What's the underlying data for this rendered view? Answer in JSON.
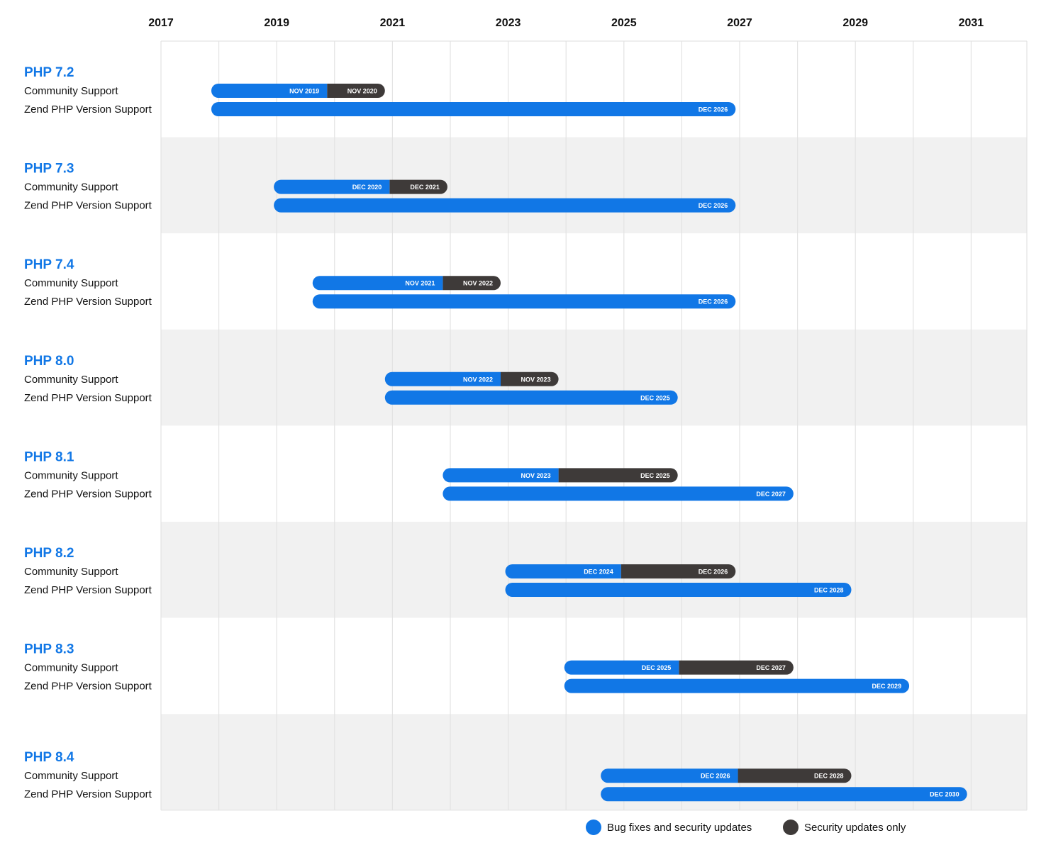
{
  "chart_data": {
    "type": "timeline",
    "years": [
      "2017",
      "2019",
      "2021",
      "2023",
      "2025",
      "2027",
      "2029",
      "2031"
    ],
    "row_labels": {
      "community": "Community Support",
      "zend": "Zend PHP Version Support"
    },
    "versions": [
      {
        "name": "PHP 7.2",
        "community": {
          "start": 2017.87,
          "full_end": 2019.87,
          "full_label": "NOV 2019",
          "security_end": 2020.87,
          "security_label": "NOV 2020"
        },
        "zend": {
          "start": 2017.87,
          "end": 2026.93,
          "label": "DEC 2026"
        }
      },
      {
        "name": "PHP 7.3",
        "community": {
          "start": 2018.95,
          "full_end": 2020.95,
          "full_label": "DEC 2020",
          "security_end": 2021.95,
          "security_label": "DEC 2021"
        },
        "zend": {
          "start": 2018.95,
          "end": 2026.93,
          "label": "DEC 2026"
        }
      },
      {
        "name": "PHP 7.4",
        "community": {
          "start": 2019.62,
          "full_end": 2021.87,
          "full_label": "NOV 2021",
          "security_end": 2022.87,
          "security_label": "NOV 2022"
        },
        "zend": {
          "start": 2019.62,
          "end": 2026.93,
          "label": "DEC 2026"
        }
      },
      {
        "name": "PHP 8.0",
        "community": {
          "start": 2020.87,
          "full_end": 2022.87,
          "full_label": "NOV 2022",
          "security_end": 2023.87,
          "security_label": "NOV 2023"
        },
        "zend": {
          "start": 2020.87,
          "end": 2025.93,
          "label": "DEC 2025"
        }
      },
      {
        "name": "PHP 8.1",
        "community": {
          "start": 2021.87,
          "full_end": 2023.87,
          "full_label": "NOV 2023",
          "security_end": 2025.93,
          "security_label": "DEC 2025"
        },
        "zend": {
          "start": 2021.87,
          "end": 2027.93,
          "label": "DEC 2027"
        }
      },
      {
        "name": "PHP 8.2",
        "community": {
          "start": 2022.95,
          "full_end": 2024.95,
          "full_label": "DEC 2024",
          "security_end": 2026.93,
          "security_label": "DEC 2026"
        },
        "zend": {
          "start": 2022.95,
          "end": 2028.93,
          "label": "DEC 2028"
        }
      },
      {
        "name": "PHP 8.3",
        "community": {
          "start": 2023.97,
          "full_end": 2025.95,
          "full_label": "DEC 2025",
          "security_end": 2027.93,
          "security_label": "DEC 2027"
        },
        "zend": {
          "start": 2023.97,
          "end": 2029.93,
          "label": "DEC 2029"
        }
      },
      {
        "name": "PHP 8.4",
        "community": {
          "start": 2024.6,
          "full_end": 2026.97,
          "full_label": "DEC 2026",
          "security_end": 2028.93,
          "security_label": "DEC 2028"
        },
        "zend": {
          "start": 2024.6,
          "end": 2030.93,
          "label": "DEC 2030"
        }
      }
    ],
    "legend": [
      {
        "label": "Bug fixes and security updates",
        "color": "#1177e6"
      },
      {
        "label": "Security updates only",
        "color": "#3e3a39"
      }
    ],
    "colors": {
      "accent": "#1177e6",
      "security": "#3e3a39",
      "band_alt": "#f1f1f1",
      "grid": "#e3e3e3"
    },
    "grid": true,
    "legend_position": "bottom-center"
  }
}
